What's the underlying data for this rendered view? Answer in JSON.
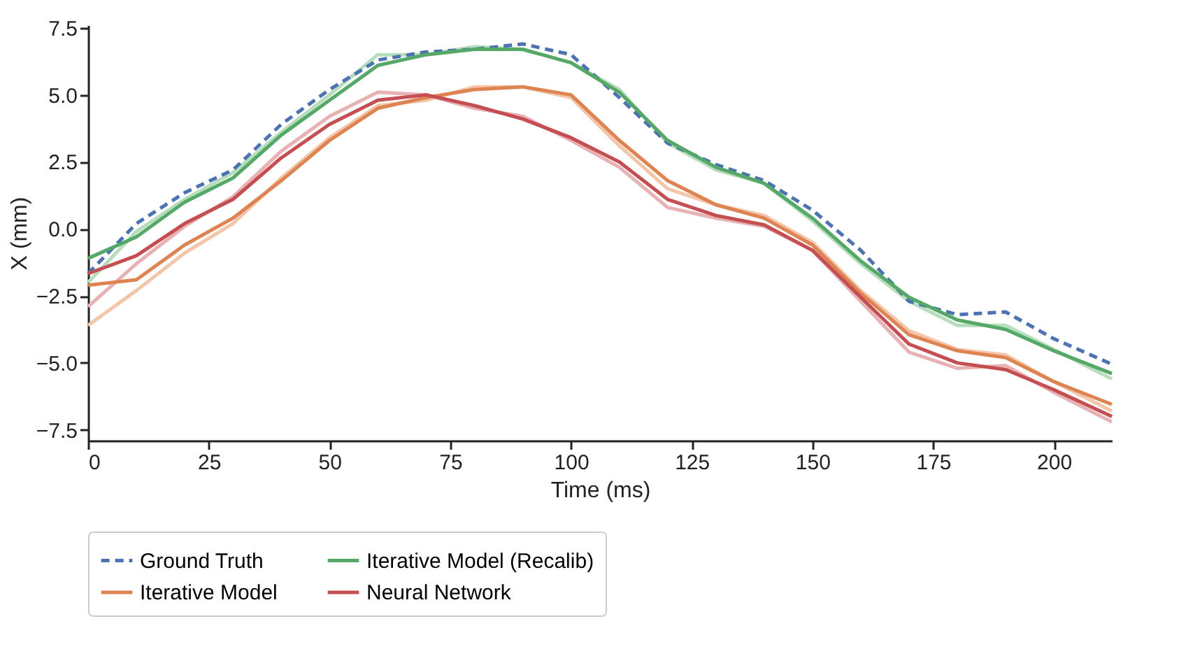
{
  "chart_data": {
    "type": "line",
    "xlabel": "Time (ms)",
    "ylabel": "X  (mm)",
    "x": [
      0,
      10,
      20,
      30,
      40,
      50,
      60,
      70,
      80,
      90,
      100,
      110,
      120,
      130,
      140,
      150,
      160,
      170,
      180,
      190,
      200,
      212
    ],
    "xlim": [
      0,
      212
    ],
    "xticks": [
      0,
      25,
      50,
      75,
      100,
      125,
      150,
      175,
      200
    ],
    "ylim": [
      -7.9,
      7.6
    ],
    "yticks": [
      -7.5,
      {
        "value": -5,
        "label": "−5.0"
      },
      -2.5,
      {
        "value": 0,
        "label": "0.0"
      },
      2.5,
      {
        "value": 5,
        "label": "5.0"
      },
      7.5
    ],
    "grid": false,
    "legend": "bottom",
    "marker": "none",
    "series": [
      {
        "color": "#f4c6a9",
        "values": [
          -3.6,
          -2.3,
          -0.9,
          0.2,
          1.9,
          3.4,
          4.6,
          4.8,
          5.3,
          5.3,
          4.9,
          3.1,
          1.5,
          0.9,
          0.5,
          -0.5,
          -2.3,
          -3.8,
          -4.5,
          -4.7,
          -5.7,
          -6.8
        ]
      },
      {
        "color": "#e8b1b4",
        "values": [
          -2.9,
          -1.3,
          0.1,
          1.2,
          2.9,
          4.2,
          5.1,
          5.0,
          4.5,
          4.2,
          3.3,
          2.3,
          0.8,
          0.4,
          0.1,
          -0.8,
          -2.7,
          -4.6,
          -5.2,
          -5.1,
          -6.1,
          -7.2
        ]
      },
      {
        "color": "#b6ddbc",
        "values": [
          -2.0,
          -0.1,
          1.1,
          2.1,
          3.6,
          5.0,
          6.5,
          6.5,
          6.8,
          6.7,
          6.2,
          5.2,
          3.2,
          2.2,
          1.7,
          0.3,
          -1.3,
          -2.7,
          -3.6,
          -3.6,
          -4.5,
          -5.6
        ]
      },
      {
        "name": "Ground Truth",
        "color": "#4c72b0",
        "line_style": "dashed",
        "values": [
          -1.67,
          0.2,
          1.35,
          2.2,
          3.9,
          5.2,
          6.3,
          6.6,
          6.7,
          6.9,
          6.5,
          4.9,
          3.2,
          2.4,
          1.8,
          0.7,
          -0.8,
          -2.7,
          -3.2,
          -3.1,
          -4.1,
          -5.05
        ]
      },
      {
        "name": "Iterative Model",
        "color": "#dd8452",
        "line_style": "solid",
        "values": [
          -2.1,
          -1.9,
          -0.6,
          0.4,
          1.8,
          3.3,
          4.5,
          4.9,
          5.2,
          5.3,
          5.0,
          3.3,
          1.8,
          0.9,
          0.4,
          -0.6,
          -2.4,
          -3.95,
          -4.55,
          -4.8,
          -5.7,
          -6.55
        ]
      },
      {
        "name": "Iterative Model (Recalib)",
        "color": "#55a868",
        "line_style": "solid",
        "values": [
          -1.1,
          -0.3,
          1.0,
          1.9,
          3.5,
          4.8,
          6.1,
          6.5,
          6.7,
          6.7,
          6.2,
          5.1,
          3.3,
          2.3,
          1.7,
          0.4,
          -1.2,
          -2.55,
          -3.4,
          -3.75,
          -4.55,
          -5.4
        ]
      },
      {
        "name": "Neural Network",
        "color": "#c44e52",
        "line_style": "solid",
        "values": [
          -1.67,
          -1.0,
          0.2,
          1.1,
          2.65,
          3.9,
          4.8,
          5.0,
          4.6,
          4.1,
          3.4,
          2.5,
          1.1,
          0.5,
          0.15,
          -0.8,
          -2.55,
          -4.3,
          -5.0,
          -5.25,
          -6.0,
          -7.0
        ]
      }
    ]
  }
}
